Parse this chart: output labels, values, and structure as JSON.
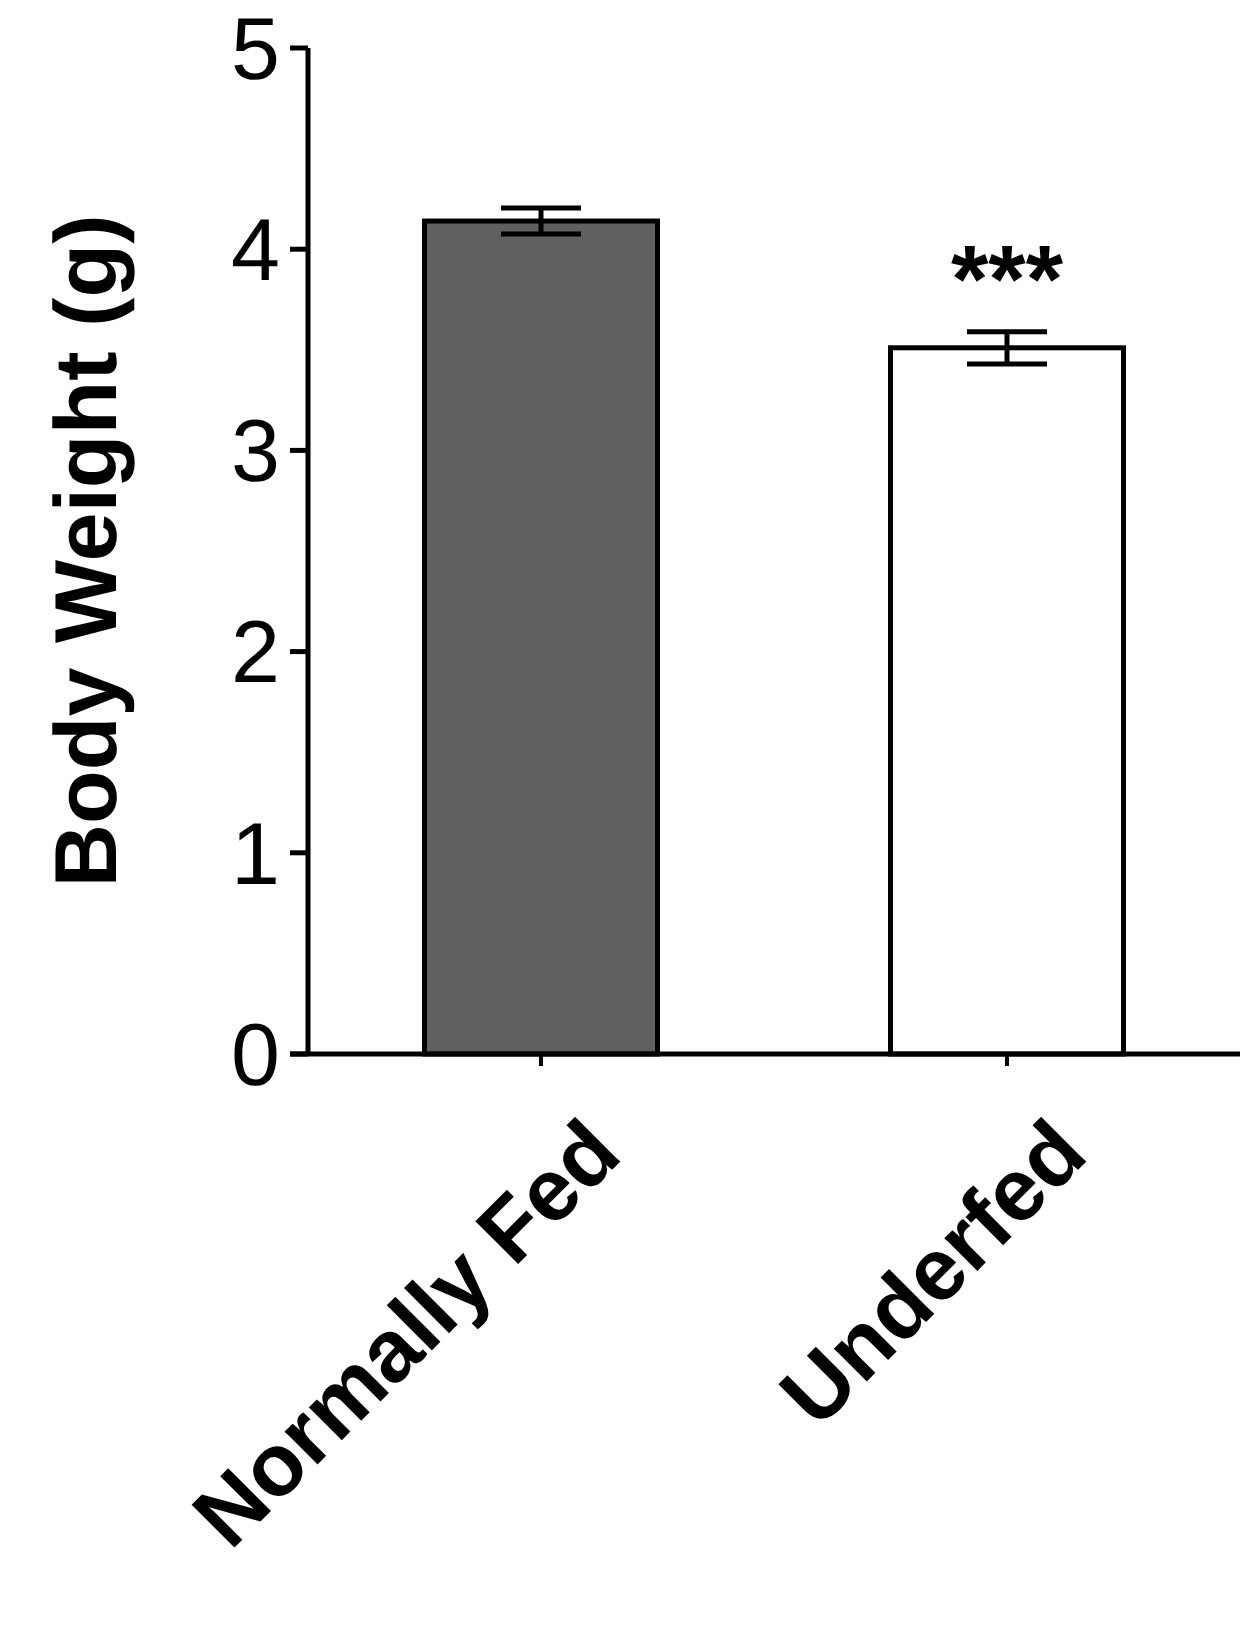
{
  "chart_data": {
    "type": "bar",
    "ylabel": "Body Weight (g)",
    "categories": [
      "Normally Fed",
      "Underfed"
    ],
    "values": [
      4.14,
      3.51
    ],
    "colors": [
      "#606060",
      "#ffffff"
    ],
    "errors": [
      0.065,
      0.08
    ],
    "ylim": [
      0,
      5
    ],
    "yticks": [
      0,
      1,
      2,
      3,
      4,
      5
    ],
    "annotations": [
      {
        "text": "***",
        "x": "Underfed",
        "y": 3.51
      }
    ]
  }
}
